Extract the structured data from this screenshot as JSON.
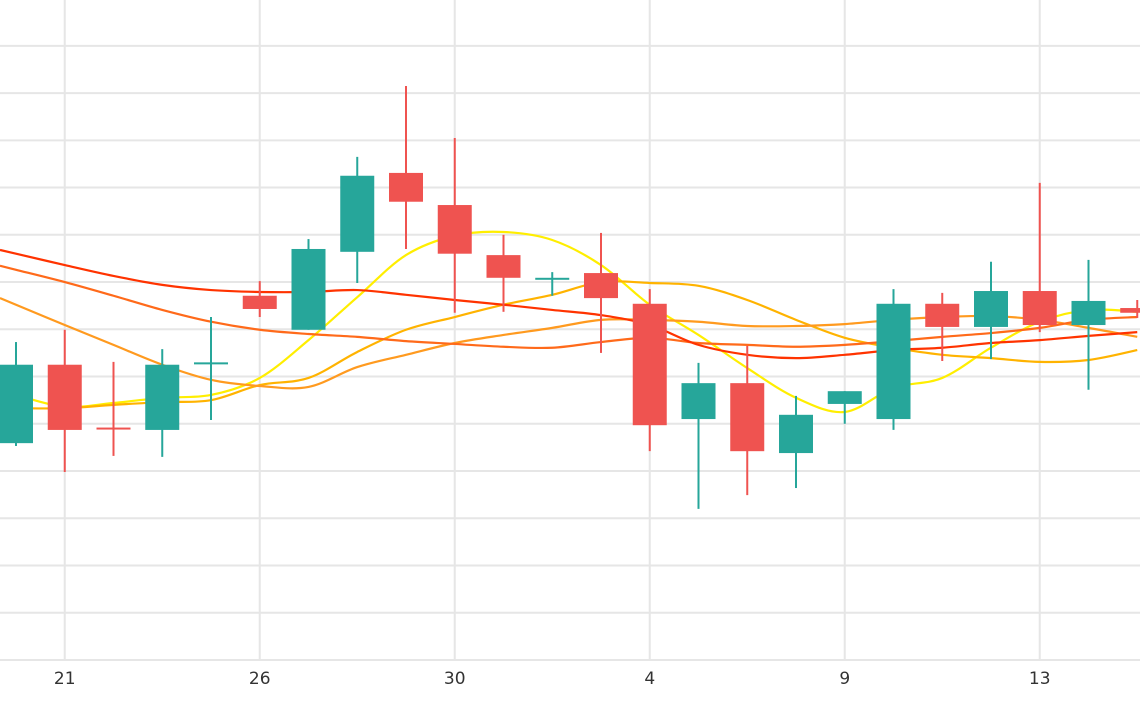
{
  "chart_data": {
    "type": "candlestick",
    "title": "",
    "xlabel": "",
    "ylabel": "",
    "ylim": [
      0,
      139.7
    ],
    "y_grid_step": 10,
    "grid": true,
    "x_tick_labels": [
      {
        "index": 1,
        "label": "21"
      },
      {
        "index": 5,
        "label": "26"
      },
      {
        "index": 9,
        "label": "30"
      },
      {
        "index": 13,
        "label": "4"
      },
      {
        "index": 17,
        "label": "9"
      },
      {
        "index": 21,
        "label": "13"
      }
    ],
    "colors": {
      "up": "#26a69a",
      "down": "#ef5350",
      "grid": "#e6e6e6"
    },
    "candles": [
      {
        "o": 45.9,
        "h": 67.3,
        "l": 45.3,
        "c": 62.5
      },
      {
        "o": 62.5,
        "h": 69.9,
        "l": 39.8,
        "c": 48.7
      },
      {
        "o": 49.2,
        "h": 63.1,
        "l": 43.2,
        "c": 49.0
      },
      {
        "o": 48.7,
        "h": 65.8,
        "l": 43.0,
        "c": 62.5
      },
      {
        "o": 62.8,
        "h": 72.6,
        "l": 50.8,
        "c": 63.0
      },
      {
        "o": 77.1,
        "h": 80.2,
        "l": 72.6,
        "c": 74.3
      },
      {
        "o": 69.9,
        "h": 89.1,
        "l": 69.9,
        "c": 87.0
      },
      {
        "o": 86.4,
        "h": 106.5,
        "l": 79.8,
        "c": 102.5
      },
      {
        "o": 103.1,
        "h": 121.5,
        "l": 87.0,
        "c": 97.0
      },
      {
        "o": 96.3,
        "h": 110.5,
        "l": 73.5,
        "c": 86.0
      },
      {
        "o": 85.7,
        "h": 90.0,
        "l": 73.7,
        "c": 80.9
      },
      {
        "o": 80.7,
        "h": 82.1,
        "l": 77.1,
        "c": 80.9
      },
      {
        "o": 81.9,
        "h": 90.4,
        "l": 65.0,
        "c": 76.6
      },
      {
        "o": 75.4,
        "h": 78.5,
        "l": 44.2,
        "c": 49.7
      },
      {
        "o": 51.0,
        "h": 62.9,
        "l": 32.0,
        "c": 58.6
      },
      {
        "o": 58.6,
        "h": 66.5,
        "l": 34.9,
        "c": 44.2
      },
      {
        "o": 43.8,
        "h": 55.9,
        "l": 36.4,
        "c": 51.9
      },
      {
        "o": 54.2,
        "h": 56.9,
        "l": 50.0,
        "c": 56.9
      },
      {
        "o": 51.0,
        "h": 78.5,
        "l": 48.7,
        "c": 75.4
      },
      {
        "o": 75.4,
        "h": 77.7,
        "l": 63.3,
        "c": 70.5
      },
      {
        "o": 70.5,
        "h": 84.3,
        "l": 63.7,
        "c": 78.1
      },
      {
        "o": 78.1,
        "h": 101.0,
        "l": 69.4,
        "c": 70.9
      },
      {
        "o": 70.9,
        "h": 84.7,
        "l": 57.2,
        "c": 76.0
      },
      {
        "o": 74.5,
        "h": 76.2,
        "l": 72.4,
        "c": 73.5
      }
    ],
    "series": [
      {
        "name": "ma-yellow",
        "color": "#ffee00",
        "values": [
          56.1,
          53.6,
          54.4,
          55.5,
          56.1,
          59.7,
          67.7,
          76.8,
          85.7,
          89.8,
          90.6,
          88.9,
          83.6,
          75.2,
          68.8,
          61.8,
          55.5,
          52.5,
          57.6,
          59.7,
          66.1,
          71.6,
          74.1,
          73.7
        ]
      },
      {
        "name": "ma-gold",
        "color": "#ffb300",
        "values": [
          53.3,
          53.3,
          54.0,
          54.6,
          55.0,
          58.2,
          59.7,
          65.2,
          69.9,
          72.6,
          75.2,
          77.3,
          80.0,
          79.8,
          79.2,
          76.2,
          72.0,
          68.2,
          66.1,
          64.6,
          63.9,
          63.1,
          63.5,
          65.6
        ]
      },
      {
        "name": "ma-orange",
        "color": "#ff9a1f",
        "values": [
          75.2,
          70.9,
          66.7,
          62.5,
          59.3,
          58.0,
          57.8,
          62.0,
          64.6,
          67.1,
          68.8,
          70.3,
          72.0,
          72.0,
          71.6,
          70.7,
          70.7,
          71.1,
          72.0,
          72.6,
          72.8,
          72.0,
          70.3,
          68.4
        ]
      },
      {
        "name": "ma-dark-orange",
        "color": "#ff6a1a",
        "values": [
          82.6,
          80.0,
          77.1,
          74.1,
          71.6,
          69.9,
          69.0,
          68.4,
          67.5,
          66.9,
          66.3,
          66.1,
          67.3,
          68.2,
          67.1,
          66.7,
          66.3,
          66.7,
          67.5,
          68.4,
          69.2,
          70.3,
          72.0,
          72.6
        ]
      },
      {
        "name": "ma-red",
        "color": "#ff3300",
        "values": [
          86.0,
          83.6,
          81.3,
          79.4,
          78.3,
          77.9,
          77.9,
          78.3,
          77.3,
          76.2,
          75.2,
          74.1,
          73.0,
          70.9,
          66.7,
          64.6,
          63.9,
          64.6,
          65.6,
          66.1,
          67.1,
          67.7,
          68.6,
          69.4
        ]
      }
    ]
  }
}
